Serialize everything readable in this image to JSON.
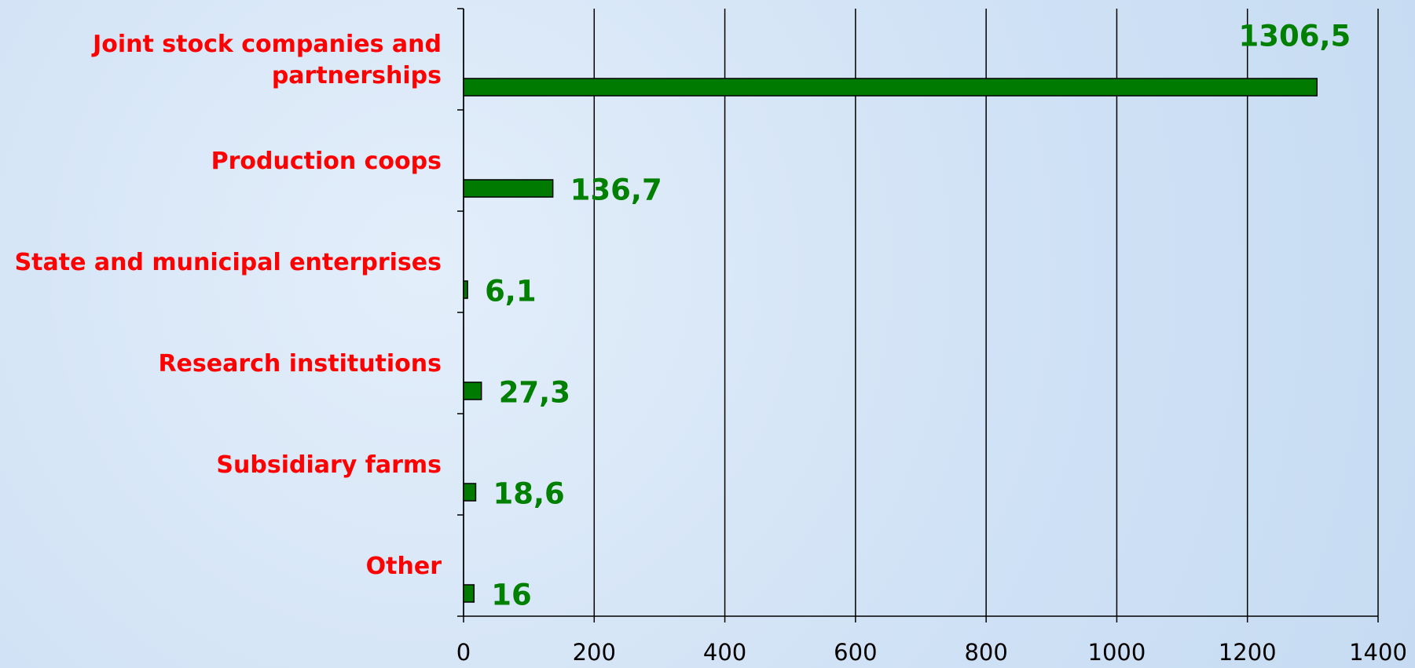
{
  "chart_data": {
    "type": "barh",
    "categories": [
      "Joint stock companies and partnerships",
      "Production coops",
      "State and municipal enterprises",
      "Research institutions",
      "Subsidiary farms",
      "Other"
    ],
    "values": [
      1306.5,
      136.7,
      6.1,
      27.3,
      18.6,
      16
    ],
    "value_labels": [
      "1306,5",
      "136,7",
      "6,1",
      "27,3",
      "18,6",
      "16"
    ],
    "color": "#007a00",
    "xlim": [
      0,
      1400
    ],
    "xticks": [
      0,
      200,
      400,
      600,
      800,
      1000,
      1200,
      1400
    ],
    "grid": true
  }
}
